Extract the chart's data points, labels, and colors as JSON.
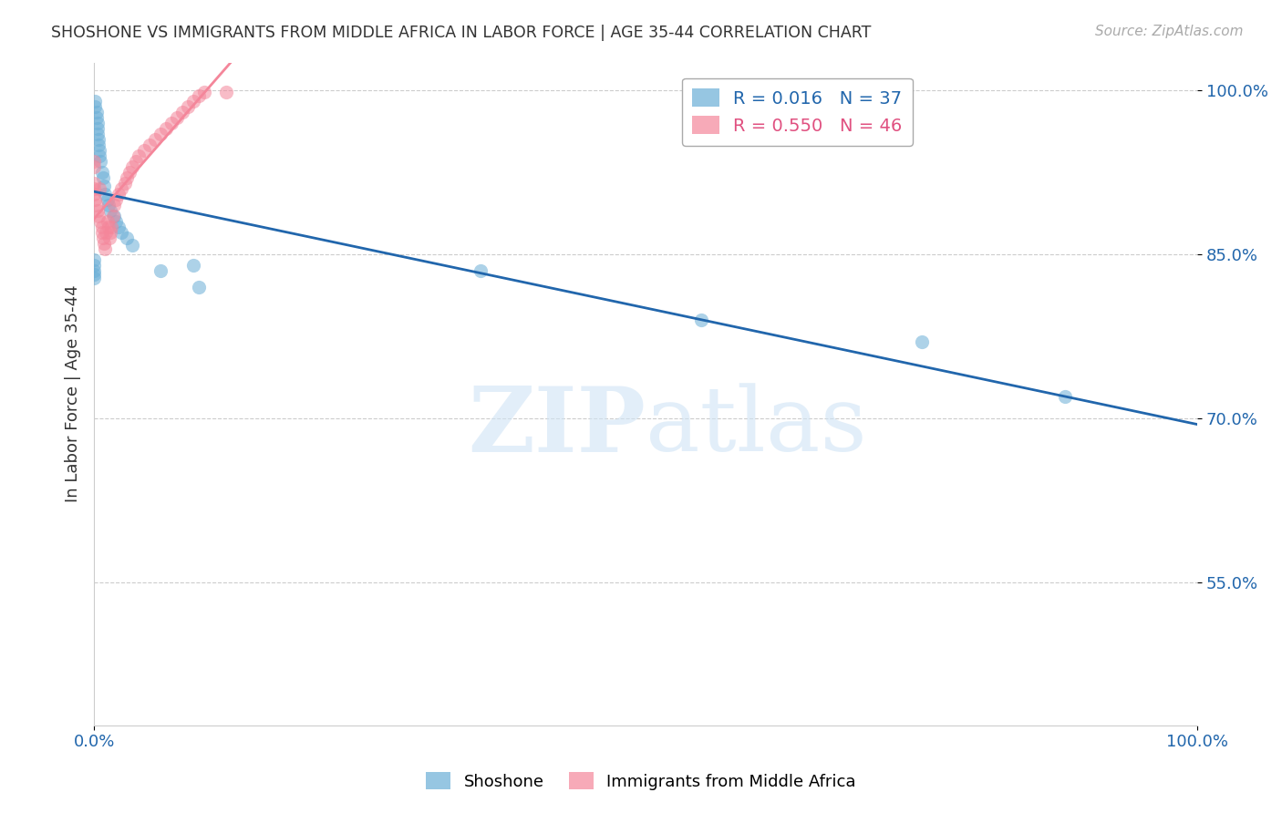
{
  "title": "SHOSHONE VS IMMIGRANTS FROM MIDDLE AFRICA IN LABOR FORCE | AGE 35-44 CORRELATION CHART",
  "source": "Source: ZipAtlas.com",
  "ylabel": "In Labor Force | Age 35-44",
  "x_min": 0.0,
  "x_max": 1.0,
  "y_min": 0.42,
  "y_max": 1.025,
  "legend_R_blue": "0.016",
  "legend_N_blue": "37",
  "legend_R_pink": "0.550",
  "legend_N_pink": "46",
  "blue_color": "#6aaed6",
  "pink_color": "#f4869a",
  "blue_line_color": "#2166ac",
  "pink_line_color": "#f4869a",
  "background_color": "#ffffff",
  "shoshone_x": [
    0.0,
    0.0,
    0.0,
    0.0,
    0.0,
    0.001,
    0.001,
    0.002,
    0.002,
    0.003,
    0.003,
    0.003,
    0.004,
    0.004,
    0.005,
    0.005,
    0.006,
    0.007,
    0.008,
    0.009,
    0.01,
    0.012,
    0.013,
    0.015,
    0.018,
    0.02,
    0.022,
    0.025,
    0.03,
    0.035,
    0.06,
    0.09,
    0.095,
    0.35,
    0.55,
    0.75,
    0.88
  ],
  "shoshone_y": [
    0.845,
    0.84,
    0.835,
    0.832,
    0.828,
    0.99,
    0.985,
    0.98,
    0.975,
    0.97,
    0.965,
    0.96,
    0.955,
    0.95,
    0.945,
    0.94,
    0.935,
    0.925,
    0.92,
    0.912,
    0.905,
    0.9,
    0.895,
    0.89,
    0.885,
    0.88,
    0.875,
    0.87,
    0.865,
    0.858,
    0.835,
    0.84,
    0.82,
    0.835,
    0.79,
    0.77,
    0.72
  ],
  "africa_x": [
    0.0,
    0.0,
    0.0,
    0.0,
    0.0,
    0.001,
    0.002,
    0.003,
    0.004,
    0.005,
    0.006,
    0.007,
    0.007,
    0.008,
    0.009,
    0.01,
    0.011,
    0.012,
    0.013,
    0.014,
    0.015,
    0.016,
    0.017,
    0.018,
    0.02,
    0.022,
    0.025,
    0.028,
    0.03,
    0.032,
    0.035,
    0.038,
    0.04,
    0.045,
    0.05,
    0.055,
    0.06,
    0.065,
    0.07,
    0.075,
    0.08,
    0.085,
    0.09,
    0.095,
    0.1,
    0.12
  ],
  "africa_y": [
    0.935,
    0.93,
    0.915,
    0.91,
    0.905,
    0.9,
    0.895,
    0.89,
    0.885,
    0.91,
    0.88,
    0.875,
    0.87,
    0.865,
    0.86,
    0.855,
    0.87,
    0.88,
    0.875,
    0.865,
    0.87,
    0.875,
    0.885,
    0.895,
    0.9,
    0.905,
    0.91,
    0.915,
    0.92,
    0.925,
    0.93,
    0.935,
    0.94,
    0.945,
    0.95,
    0.955,
    0.96,
    0.965,
    0.97,
    0.975,
    0.98,
    0.985,
    0.99,
    0.995,
    0.998,
    0.998
  ]
}
